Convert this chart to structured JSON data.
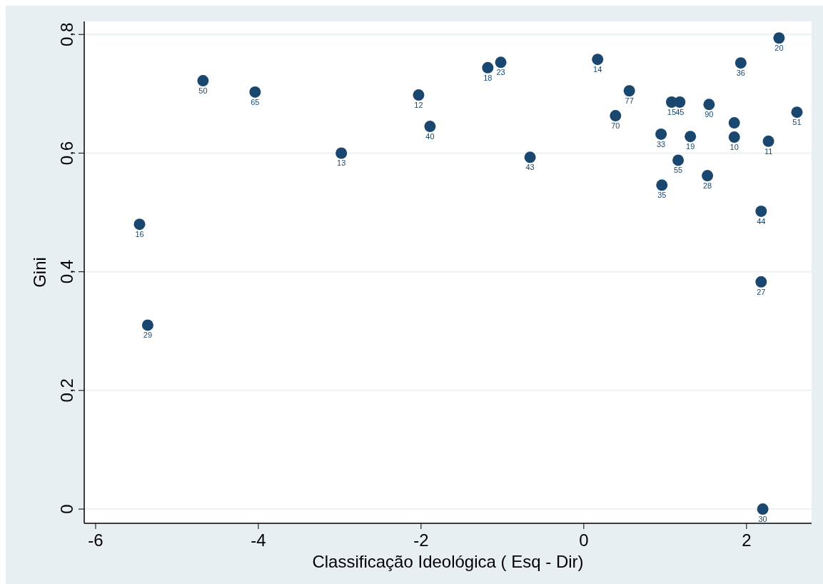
{
  "chart_data": {
    "type": "scatter",
    "xlabel": "Classificação Ideológica ( Esq - Dir)",
    "ylabel": "Gini",
    "xlim": [
      -6.14,
      2.8
    ],
    "xticks": [
      -6,
      -4,
      -2,
      0,
      2
    ],
    "ylim": [
      -0.024,
      0.822
    ],
    "yticks": [
      {
        "value": 0,
        "label": "0"
      },
      {
        "value": 0.2,
        "label": "0,2"
      },
      {
        "value": 0.4,
        "label": "0,4"
      },
      {
        "value": 0.6,
        "label": "0,6"
      },
      {
        "value": 0.8,
        "label": "0,8"
      }
    ],
    "grid": "y",
    "marker": "circle",
    "series": [
      {
        "color": "#1a476f",
        "x": [
          -5.46,
          -5.36,
          -4.68,
          -4.04,
          -2.98,
          -2.03,
          -1.89,
          -1.18,
          -1.02,
          -0.66,
          0.17,
          0.56,
          0.39,
          0.95,
          1.08,
          1.18,
          1.16,
          0.96,
          1.31,
          1.52,
          1.54,
          1.85,
          1.85,
          1.93,
          2.4,
          2.27,
          2.62,
          2.18,
          2.18,
          2.2
        ],
        "values": [
          0.48,
          0.31,
          0.722,
          0.703,
          0.6,
          0.698,
          0.645,
          0.744,
          0.753,
          0.593,
          0.758,
          0.705,
          0.663,
          0.632,
          0.686,
          0.686,
          0.588,
          0.546,
          0.628,
          0.562,
          0.682,
          0.651,
          0.627,
          0.752,
          0.794,
          0.62,
          0.669,
          0.502,
          0.383,
          0.0
        ]
      }
    ],
    "annotations": [
      {
        "text": "16",
        "x": -5.46,
        "y": 0.48
      },
      {
        "text": "29",
        "x": -5.36,
        "y": 0.31
      },
      {
        "text": "50",
        "x": -4.68,
        "y": 0.722
      },
      {
        "text": "65",
        "x": -4.04,
        "y": 0.703
      },
      {
        "text": "13",
        "x": -2.98,
        "y": 0.6
      },
      {
        "text": "12",
        "x": -2.03,
        "y": 0.698
      },
      {
        "text": "40",
        "x": -1.89,
        "y": 0.645
      },
      {
        "text": "18",
        "x": -1.18,
        "y": 0.744
      },
      {
        "text": "23",
        "x": -1.02,
        "y": 0.753
      },
      {
        "text": "43",
        "x": -0.66,
        "y": 0.593
      },
      {
        "text": "14",
        "x": 0.17,
        "y": 0.758
      },
      {
        "text": "77",
        "x": 0.56,
        "y": 0.705
      },
      {
        "text": "70",
        "x": 0.39,
        "y": 0.663
      },
      {
        "text": "33",
        "x": 0.95,
        "y": 0.632
      },
      {
        "text": "15",
        "x": 1.08,
        "y": 0.686
      },
      {
        "text": "45",
        "x": 1.18,
        "y": 0.686
      },
      {
        "text": "55",
        "x": 1.16,
        "y": 0.588
      },
      {
        "text": "35",
        "x": 0.96,
        "y": 0.546
      },
      {
        "text": "19",
        "x": 1.31,
        "y": 0.628
      },
      {
        "text": "28",
        "x": 1.52,
        "y": 0.562
      },
      {
        "text": "90",
        "x": 1.54,
        "y": 0.682
      },
      {
        "text": "10",
        "x": 1.85,
        "y": 0.627
      },
      {
        "text": "36",
        "x": 1.93,
        "y": 0.752
      },
      {
        "text": "20",
        "x": 2.4,
        "y": 0.794
      },
      {
        "text": "11",
        "x": 2.27,
        "y": 0.62
      },
      {
        "text": "51",
        "x": 2.62,
        "y": 0.669
      },
      {
        "text": "44",
        "x": 2.18,
        "y": 0.502
      },
      {
        "text": "27",
        "x": 2.18,
        "y": 0.383
      },
      {
        "text": "30",
        "x": 2.2,
        "y": 0.0
      }
    ]
  }
}
